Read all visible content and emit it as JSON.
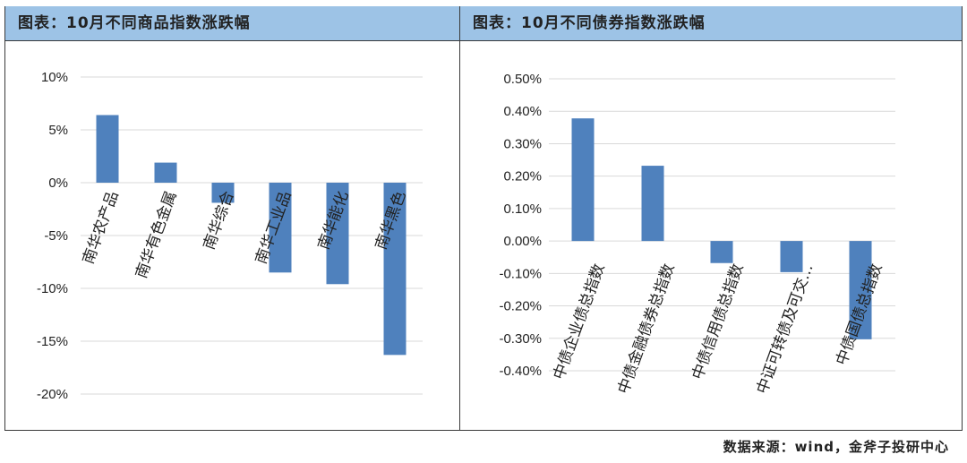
{
  "panels": [
    {
      "title": "图表：10月不同商品指数涨跌幅"
    },
    {
      "title": "图表：10月不同债券指数涨跌幅"
    }
  ],
  "source": "数据来源：wind，金斧子投研中心",
  "chart_data": [
    {
      "type": "bar",
      "title": "",
      "categories": [
        "南华农产品",
        "南华有色金属",
        "南华综合",
        "南华工业品",
        "南华能化",
        "南华黑色"
      ],
      "values": [
        6.4,
        1.9,
        -1.9,
        -8.5,
        -9.6,
        -16.3
      ],
      "unit": "%",
      "ylim": [
        -20,
        10
      ],
      "yticks": [
        10,
        5,
        0,
        -5,
        -10,
        -15,
        -20
      ],
      "ytick_labels": [
        "10%",
        "5%",
        "0%",
        "-5%",
        "-10%",
        "-15%",
        "-20%"
      ],
      "grid": true,
      "color": "#4f81bd"
    },
    {
      "type": "bar",
      "title": "",
      "categories": [
        "中债企业债总指数",
        "中债金融债券总指数",
        "中债信用债总指数",
        "中证可转债及可交…",
        "中债国债总指数"
      ],
      "values": [
        0.378,
        0.232,
        -0.068,
        -0.096,
        -0.303
      ],
      "unit": "%",
      "ylim": [
        -0.4,
        0.5
      ],
      "yticks": [
        0.5,
        0.4,
        0.3,
        0.2,
        0.1,
        0,
        -0.1,
        -0.2,
        -0.3,
        -0.4
      ],
      "ytick_labels": [
        "0.50%",
        "0.40%",
        "0.30%",
        "0.20%",
        "0.10%",
        "0.00%",
        "-0.10%",
        "-0.20%",
        "-0.30%",
        "-0.40%"
      ],
      "grid": true,
      "color": "#4f81bd"
    }
  ]
}
